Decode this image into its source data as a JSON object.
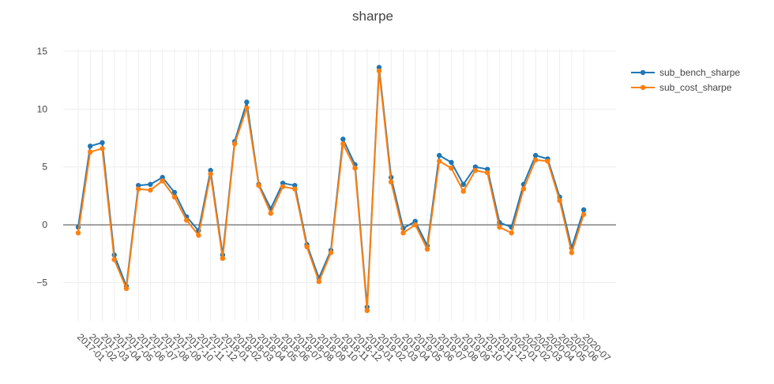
{
  "chart_data": {
    "type": "line",
    "title": "sharpe",
    "xlabel": "",
    "ylabel": "",
    "ylim": [
      -8.3,
      15.2
    ],
    "y_ticks": [
      15,
      10,
      5,
      0,
      -5
    ],
    "y_tick_labels": [
      "15",
      "10",
      "5",
      "0",
      "−5"
    ],
    "grid": true,
    "legend_position": "top-right",
    "categories": [
      "2017-01",
      "2017-02",
      "2017-03",
      "2017-04",
      "2017-05",
      "2017-06",
      "2017-07",
      "2017-08",
      "2017-09",
      "2017-10",
      "2017-11",
      "2017-12",
      "2018-01",
      "2018-02",
      "2018-03",
      "2018-04",
      "2018-05",
      "2018-06",
      "2018-07",
      "2018-08",
      "2018-09",
      "2018-10",
      "2018-11",
      "2018-12",
      "2019-01",
      "2019-02",
      "2019-03",
      "2019-04",
      "2019-05",
      "2019-06",
      "2019-07",
      "2019-08",
      "2019-09",
      "2019-10",
      "2019-11",
      "2019-12",
      "2020-01",
      "2020-02",
      "2020-03",
      "2020-04",
      "2020-05",
      "2020-06",
      "2020-07"
    ],
    "series": [
      {
        "name": "sub_bench_sharpe",
        "color": "#1f77b4",
        "values": [
          -0.2,
          6.8,
          7.1,
          -2.6,
          -5.3,
          3.4,
          3.5,
          4.1,
          2.8,
          0.7,
          -0.5,
          4.7,
          -2.6,
          7.2,
          10.6,
          3.5,
          1.4,
          3.6,
          3.4,
          -1.7,
          -4.6,
          -2.2,
          7.4,
          5.2,
          -7.1,
          13.6,
          4.1,
          -0.3,
          0.3,
          -1.8,
          6.0,
          5.4,
          3.5,
          5.0,
          4.8,
          0.2,
          -0.2,
          3.5,
          6.0,
          5.7,
          2.4,
          -2.0,
          1.3
        ]
      },
      {
        "name": "sub_cost_sharpe",
        "color": "#ff7f0e",
        "values": [
          -0.7,
          6.3,
          6.6,
          -3.0,
          -5.5,
          3.1,
          3.0,
          3.8,
          2.4,
          0.4,
          -0.9,
          4.4,
          -2.9,
          7.0,
          10.1,
          3.4,
          1.0,
          3.3,
          3.1,
          -1.9,
          -4.9,
          -2.4,
          7.0,
          4.9,
          -7.4,
          13.3,
          3.7,
          -0.7,
          0.0,
          -2.1,
          5.5,
          4.9,
          2.9,
          4.7,
          4.5,
          -0.2,
          -0.7,
          3.1,
          5.6,
          5.5,
          2.1,
          -2.4,
          0.9
        ]
      }
    ]
  }
}
